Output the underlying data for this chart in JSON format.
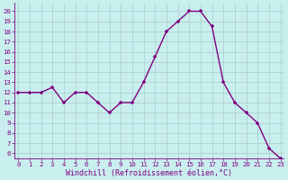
{
  "x": [
    0,
    1,
    2,
    3,
    4,
    5,
    6,
    7,
    8,
    9,
    10,
    11,
    12,
    13,
    14,
    15,
    16,
    17,
    18,
    19,
    20,
    21,
    22,
    23
  ],
  "y": [
    12,
    12,
    12,
    12.5,
    11,
    12,
    12,
    11,
    10,
    11,
    11,
    13,
    15.5,
    18,
    19,
    20,
    20,
    18.5,
    13,
    11,
    10,
    9,
    6.5,
    5.5
  ],
  "line_color": "#800080",
  "marker_color": "#800080",
  "bg_color": "#C8EEEE",
  "grid_color": "#aacccc",
  "xlabel": "Windchill (Refroidissement éolien,°C)",
  "font_color": "#800080",
  "xtick_labels": [
    "0",
    "1",
    "2",
    "3",
    "4",
    "5",
    "6",
    "7",
    "8",
    "9",
    "10",
    "11",
    "12",
    "13",
    "14",
    "15",
    "16",
    "17",
    "18",
    "19",
    "20",
    "21",
    "22",
    "23"
  ],
  "ytick_labels": [
    "6",
    "7",
    "8",
    "9",
    "10",
    "11",
    "12",
    "13",
    "14",
    "15",
    "16",
    "17",
    "18",
    "19",
    "20"
  ],
  "ytick_vals": [
    6,
    7,
    8,
    9,
    10,
    11,
    12,
    13,
    14,
    15,
    16,
    17,
    18,
    19,
    20
  ],
  "ylim": [
    5.5,
    20.8
  ],
  "xlim": [
    -0.3,
    23.3
  ],
  "tick_fontsize": 5.2,
  "xlabel_fontsize": 6.0,
  "linewidth": 1.0,
  "markersize": 3.5
}
